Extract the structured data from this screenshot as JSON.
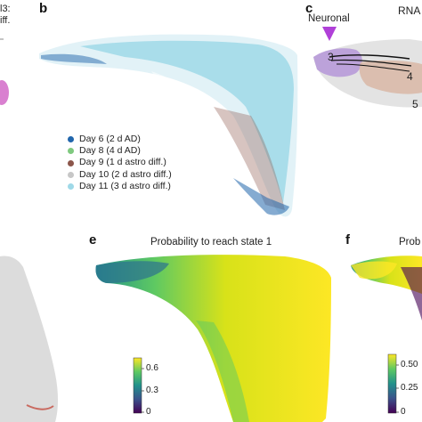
{
  "panels": {
    "a": {
      "letter": "",
      "partial_text": [
        "l3:",
        "iff."
      ]
    },
    "b": {
      "letter": "b"
    },
    "c": {
      "letter": "c",
      "annotation": "Neuronal",
      "partial_title": "RNA",
      "states": [
        "3",
        "4",
        "5"
      ]
    },
    "d": {
      "letter": ""
    },
    "e": {
      "letter": "e",
      "title": "Probability to reach state 1"
    },
    "f": {
      "letter": "f",
      "partial_title": "Prob"
    }
  },
  "legend": {
    "items": [
      {
        "label": "Day 6 (2 d AD)",
        "color": "#2166ac"
      },
      {
        "label": "Day 8 (4 d AD)",
        "color": "#7fc97f"
      },
      {
        "label": "Day 9 (1 d astro diff.)",
        "color": "#8c564b"
      },
      {
        "label": "Day 10 (2 d astro diff.)",
        "color": "#c7c7c7"
      },
      {
        "label": "Day 11 (3 d astro diff.)",
        "color": "#9fd9e8"
      }
    ]
  },
  "colorbar_e": {
    "ticks": [
      "0.6",
      "0.3",
      "0"
    ],
    "range": [
      0,
      0.7
    ]
  },
  "colorbar_f": {
    "ticks": [
      "0.50",
      "0.25",
      "0"
    ],
    "range": [
      0,
      0.6
    ]
  },
  "colors": {
    "viridis_low": "#440154",
    "viridis_mid": "#21918c",
    "viridis_high": "#fde725",
    "neuronal_marker": "#b040d8",
    "neuronal_cells": "#b79ad8",
    "state4_cells": "#d9b9a8",
    "grey_cells": "#d0d0d0"
  }
}
